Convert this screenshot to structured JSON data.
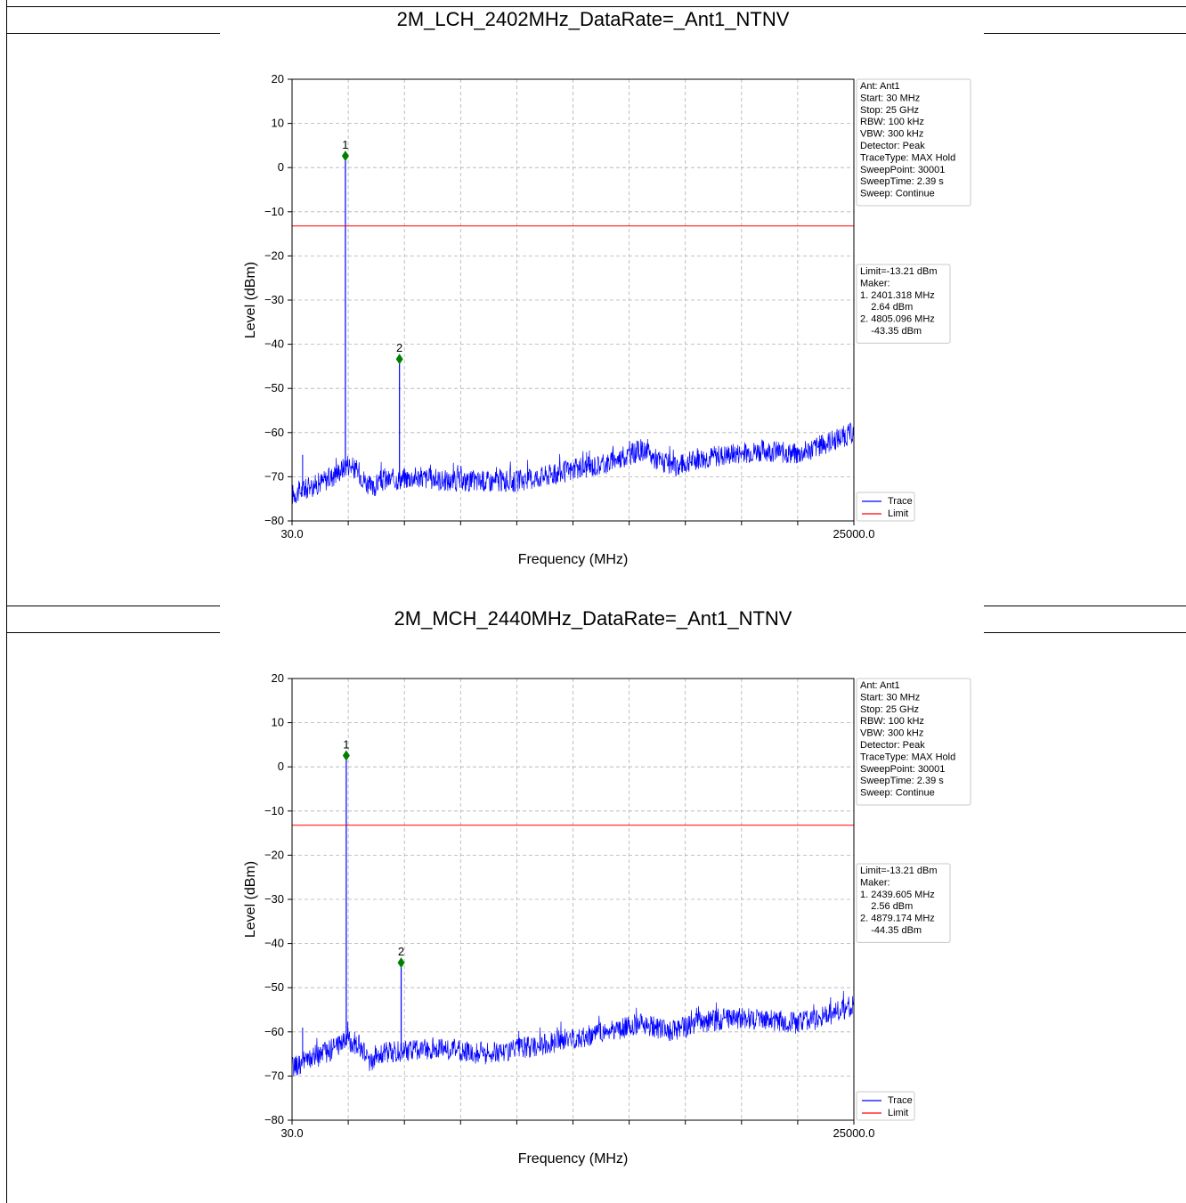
{
  "colors": {
    "trace": "#0000ff",
    "limit": "#ff0000",
    "marker": "#008000",
    "grid": "#b0b0b0"
  },
  "charts": [
    {
      "section_title": "2M_LCH_2402MHz_DataRate=_Ant1_NTNV",
      "settings": [
        "Ant: Ant1",
        "Start: 30 MHz",
        "Stop: 25 GHz",
        "RBW: 100 kHz",
        "VBW: 300 kHz",
        "Detector: Peak",
        "TraceType: MAX Hold",
        "SweepPoint: 30001",
        "SweepTime: 2.39 s",
        "Sweep: Continue"
      ],
      "results": [
        "Limit=-13.21 dBm",
        "Maker:",
        "1. 2401.318 MHz",
        "    2.64 dBm",
        "2. 4805.096 MHz",
        "    -43.35 dBm"
      ],
      "legend": [
        "Trace",
        "Limit"
      ],
      "x_ticks": [
        "30.0",
        "25000.0"
      ],
      "y_ticks": [
        "20",
        "10",
        "0",
        "−10",
        "−20",
        "−30",
        "−40",
        "−50",
        "−60",
        "−70",
        "−80"
      ]
    },
    {
      "section_title": "2M_MCH_2440MHz_DataRate=_Ant1_NTNV",
      "settings": [
        "Ant: Ant1",
        "Start: 30 MHz",
        "Stop: 25 GHz",
        "RBW: 100 kHz",
        "VBW: 300 kHz",
        "Detector: Peak",
        "TraceType: MAX Hold",
        "SweepPoint: 30001",
        "SweepTime: 2.39 s",
        "Sweep: Continue"
      ],
      "results": [
        "Limit=-13.21 dBm",
        "Maker:",
        "1. 2439.605 MHz",
        "    2.56 dBm",
        "2. 4879.174 MHz",
        "    -44.35 dBm"
      ],
      "legend": [
        "Trace",
        "Limit"
      ],
      "x_ticks": [
        "30.0",
        "25000.0"
      ],
      "y_ticks": [
        "20",
        "10",
        "0",
        "−10",
        "−20",
        "−30",
        "−40",
        "−50",
        "−60",
        "−70",
        "−80"
      ]
    }
  ],
  "chart_data": [
    {
      "type": "line",
      "xlabel": "Frequency (MHz)",
      "ylabel": "Level (dBm)",
      "xlim": [
        30,
        25000
      ],
      "ylim": [
        -80,
        20
      ],
      "grid": true,
      "legend_position": "right",
      "series": [
        {
          "name": "Trace",
          "x": [
            30,
            1000,
            1800,
            2300,
            2401.318,
            2500,
            3000,
            3600,
            3900,
            4805.096,
            5500,
            7000,
            8500,
            10000,
            12000,
            14000,
            15500,
            17000,
            18000,
            19500,
            21000,
            22500,
            23500,
            25000
          ],
          "y": [
            -74,
            -72,
            -70,
            -68,
            2.64,
            -67,
            -69,
            -73,
            -71,
            -43.35,
            -70,
            -71,
            -71,
            -71,
            -69,
            -67,
            -64,
            -68,
            -66,
            -65,
            -64,
            -65,
            -63,
            -60
          ]
        },
        {
          "name": "Limit",
          "x": [
            30,
            25000
          ],
          "y": [
            -13.21,
            -13.21
          ]
        }
      ],
      "markers": [
        {
          "label": "1",
          "x": 2401.318,
          "y": 2.64
        },
        {
          "label": "2",
          "x": 4805.096,
          "y": -43.35
        }
      ]
    },
    {
      "type": "line",
      "xlabel": "Frequency (MHz)",
      "ylabel": "Level (dBm)",
      "xlim": [
        30,
        25000
      ],
      "ylim": [
        -80,
        20
      ],
      "grid": true,
      "legend_position": "right",
      "series": [
        {
          "name": "Trace",
          "x": [
            30,
            1000,
            1800,
            2300,
            2439.605,
            2550,
            3000,
            3500,
            3800,
            4879.174,
            5500,
            7000,
            8500,
            10000,
            12000,
            14000,
            15500,
            17000,
            18000,
            19500,
            21000,
            22500,
            23500,
            25000
          ],
          "y": [
            -68,
            -66,
            -64,
            -62,
            2.56,
            -62,
            -63,
            -67,
            -65,
            -44.35,
            -64,
            -64,
            -65,
            -64,
            -62,
            -60,
            -58,
            -60,
            -58,
            -57,
            -57,
            -58,
            -57,
            -54
          ]
        },
        {
          "name": "Limit",
          "x": [
            30,
            25000
          ],
          "y": [
            -13.21,
            -13.21
          ]
        }
      ],
      "markers": [
        {
          "label": "1",
          "x": 2439.605,
          "y": 2.56
        },
        {
          "label": "2",
          "x": 4879.174,
          "y": -44.35
        }
      ]
    }
  ]
}
